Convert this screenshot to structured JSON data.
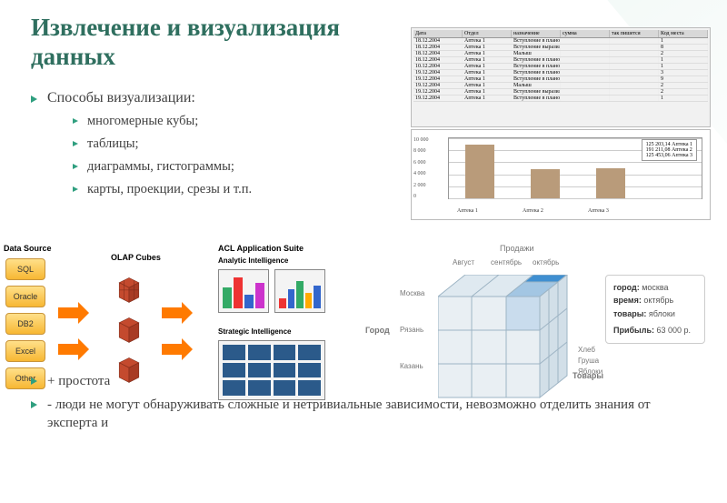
{
  "colors": {
    "title": "#2f6f5f",
    "accent": "#2f9f7f",
    "bar": "#b99b7a"
  },
  "title": "Извлечение и визуализация данных",
  "bullets": {
    "heading": "Способы визуализации:",
    "items": [
      "многомерные кубы;",
      "таблицы;",
      "диаграммы, гистограммы;",
      "карты, проекции, срезы и т.п."
    ]
  },
  "bottom": [
    "+ простота",
    "- люди не могут обнаруживать сложные и нетривиальные зависимости, невозможно отделить знания от эксперта и"
  ],
  "table": {
    "headers": [
      "Дата",
      "Отдел",
      "назначение",
      "сумма",
      "так пишется",
      "Код места"
    ],
    "rows": [
      [
        "18.12.2004",
        "Аптека 1",
        "Вступление в планово-зарабо в средств",
        "",
        "",
        "1"
      ],
      [
        "18.12.2004",
        "Аптека 1",
        "Вступление выразил за средствах",
        "",
        "",
        "8"
      ],
      [
        "18.12.2004",
        "Аптека 1",
        "Малыш",
        "",
        "",
        "2"
      ],
      [
        "18.12.2004",
        "Аптека 1",
        "Вступление в планово-зарабо в средств",
        "",
        "",
        "1"
      ],
      [
        "10.12.2004",
        "Аптека 1",
        "Вступление в планово-зарабо в средств",
        "",
        "",
        "1"
      ],
      [
        "19.12.2004",
        "Аптека 1",
        "Вступление в планово-зарабо в средств",
        "",
        "",
        "3"
      ],
      [
        "19.12.2004",
        "Аптека 1",
        "Вступление в планово-зарабо в средств",
        "",
        "",
        "9"
      ],
      [
        "19.12.2004",
        "Аптека 1",
        "Малыш",
        "",
        "",
        "2"
      ],
      [
        "19.12.2004",
        "Аптека 1",
        "Вступление выразил засоб в средствах",
        "",
        "",
        "2"
      ],
      [
        "19.12.2004",
        "Аптека 1",
        "Вступление в планово-зарабо в средств",
        "",
        "",
        "1"
      ]
    ]
  },
  "chart": {
    "type": "bar",
    "categories": [
      "Аптека 1",
      "Аптека 2",
      "Аптека 3"
    ],
    "values": [
      9000,
      4800,
      5000
    ],
    "ylim": [
      0,
      10000
    ],
    "ytick_step": 2000,
    "bar_color": "#b99b7a",
    "grid_color": "#cccccc",
    "legend": [
      "125 203,14 Аптека 1",
      "191 211,08 Аптека 2",
      "125 453,06 Аптека 3"
    ]
  },
  "dataSources": {
    "label": "Data Source",
    "items": [
      "SQL",
      "Oracle",
      "DB2",
      "Excel",
      "Other"
    ]
  },
  "olap": {
    "label": "OLAP Cubes"
  },
  "acl": {
    "suite": "ACL Application Suite",
    "analytic": "Analytic Intelligence",
    "strategic": "Strategic Intelligence"
  },
  "cube3d": {
    "axis_top": "Продажи",
    "axis_top_labels": [
      "Август",
      "сентябрь",
      "октябрь"
    ],
    "axis_left": "Город",
    "axis_left_labels": [
      "Москва",
      "Рязань",
      "Казань"
    ],
    "axis_bottom": "Товары",
    "axis_bottom_labels": [
      "Хлеб",
      "Груша",
      "Яблоки"
    ],
    "info": {
      "город": "москва",
      "время": "октябрь",
      "товары": "яблоки",
      "Прибыль": "63 000 р."
    },
    "cell_colors": {
      "default": "#e9eff3",
      "highlight": "#3f8fd1",
      "mid": "#a3c6e3"
    }
  }
}
